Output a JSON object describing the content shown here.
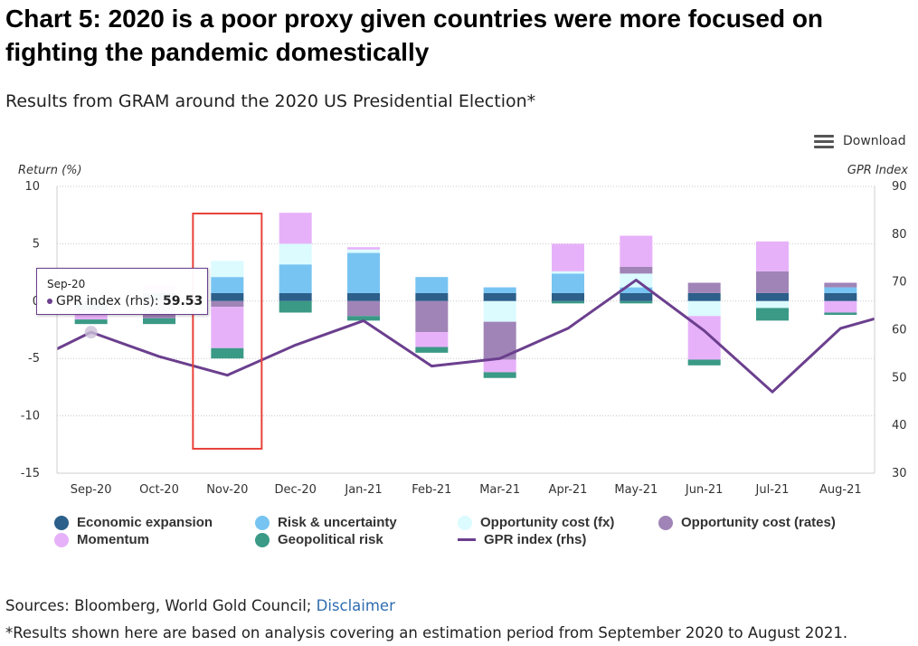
{
  "header": {
    "title": "Chart 5: 2020 is a poor proxy given countries were more focused on fighting the pandemic domestically",
    "subtitle": "Results from GRAM around the 2020 US Presidential Election*"
  },
  "toolbar": {
    "download_label": "Download",
    "download_icon": "menu-icon"
  },
  "tooltip": {
    "date": "Sep-20",
    "series_label": "GPR index (rhs):",
    "value": "59.53",
    "color": "#6b3f8e"
  },
  "footer": {
    "sources_prefix": "Sources: Bloomberg, World Gold Council; ",
    "disclaimer_link": "Disclaimer",
    "footnote": "*Results shown here are based on analysis covering an estimation period from September 2020 to August 2021."
  },
  "chart_data": {
    "type": "bar",
    "stacked": true,
    "categories": [
      "Sep-20",
      "Oct-20",
      "Nov-20",
      "Dec-20",
      "Jan-21",
      "Feb-21",
      "Mar-21",
      "Apr-21",
      "May-21",
      "Jun-21",
      "Jul-21",
      "Aug-21"
    ],
    "ylabel": "Return (%)",
    "y2label": "GPR Index",
    "ylim": [
      -15,
      10
    ],
    "y2lim": [
      30,
      90
    ],
    "yticks": [
      10,
      5,
      0,
      -5,
      -10,
      -15
    ],
    "y2ticks": [
      90,
      80,
      70,
      60,
      50,
      40,
      30
    ],
    "grid": true,
    "legend_position": "bottom",
    "highlight_category": "Nov-20",
    "highlight_color": "#e8433a",
    "series": [
      {
        "name": "Economic expansion",
        "color": "#2c5f8a",
        "values": [
          -0.8,
          0.7,
          0.7,
          0.7,
          0.7,
          0.7,
          0.7,
          0.7,
          0.7,
          0.7,
          0.7,
          0.7
        ]
      },
      {
        "name": "Risk & uncertainty",
        "color": "#77c4f2",
        "values": [
          0,
          0,
          1.4,
          2.5,
          3.5,
          1.4,
          0.5,
          1.7,
          0.5,
          0,
          0,
          0.5
        ]
      },
      {
        "name": "Opportunity cost (fx)",
        "color": "#dbfbff",
        "values": [
          0,
          0,
          1.4,
          1.8,
          0.3,
          0,
          -1.8,
          0.2,
          1.2,
          -1.3,
          -0.6,
          0
        ]
      },
      {
        "name": "Opportunity cost (rates)",
        "color": "#a084b7",
        "values": [
          0,
          -1.5,
          -0.5,
          0,
          -1.3,
          -2.7,
          -3.3,
          0,
          0.6,
          0.9,
          1.9,
          0.4
        ]
      },
      {
        "name": "Momentum",
        "color": "#e7b1f9",
        "values": [
          -0.8,
          0.7,
          -3.6,
          2.7,
          0.2,
          -1.3,
          -1.1,
          2.4,
          2.7,
          -3.8,
          2.6,
          -1.0
        ]
      },
      {
        "name": "Geopolitical risk",
        "color": "#3a9a86",
        "values": [
          -0.4,
          -0.5,
          -0.9,
          -1.0,
          -0.4,
          -0.5,
          -0.5,
          -0.2,
          -0.2,
          -0.5,
          -1.1,
          -0.2
        ]
      }
    ],
    "line": {
      "name": "GPR index (rhs)",
      "color": "#6b3f8e",
      "axis": "right",
      "values": [
        59.5,
        54.4,
        50.5,
        56.8,
        61.9,
        52.4,
        54.0,
        60.3,
        70.4,
        59.8,
        47.0,
        60.3
      ],
      "start_value": 56.0,
      "end_value": 62.3
    }
  }
}
